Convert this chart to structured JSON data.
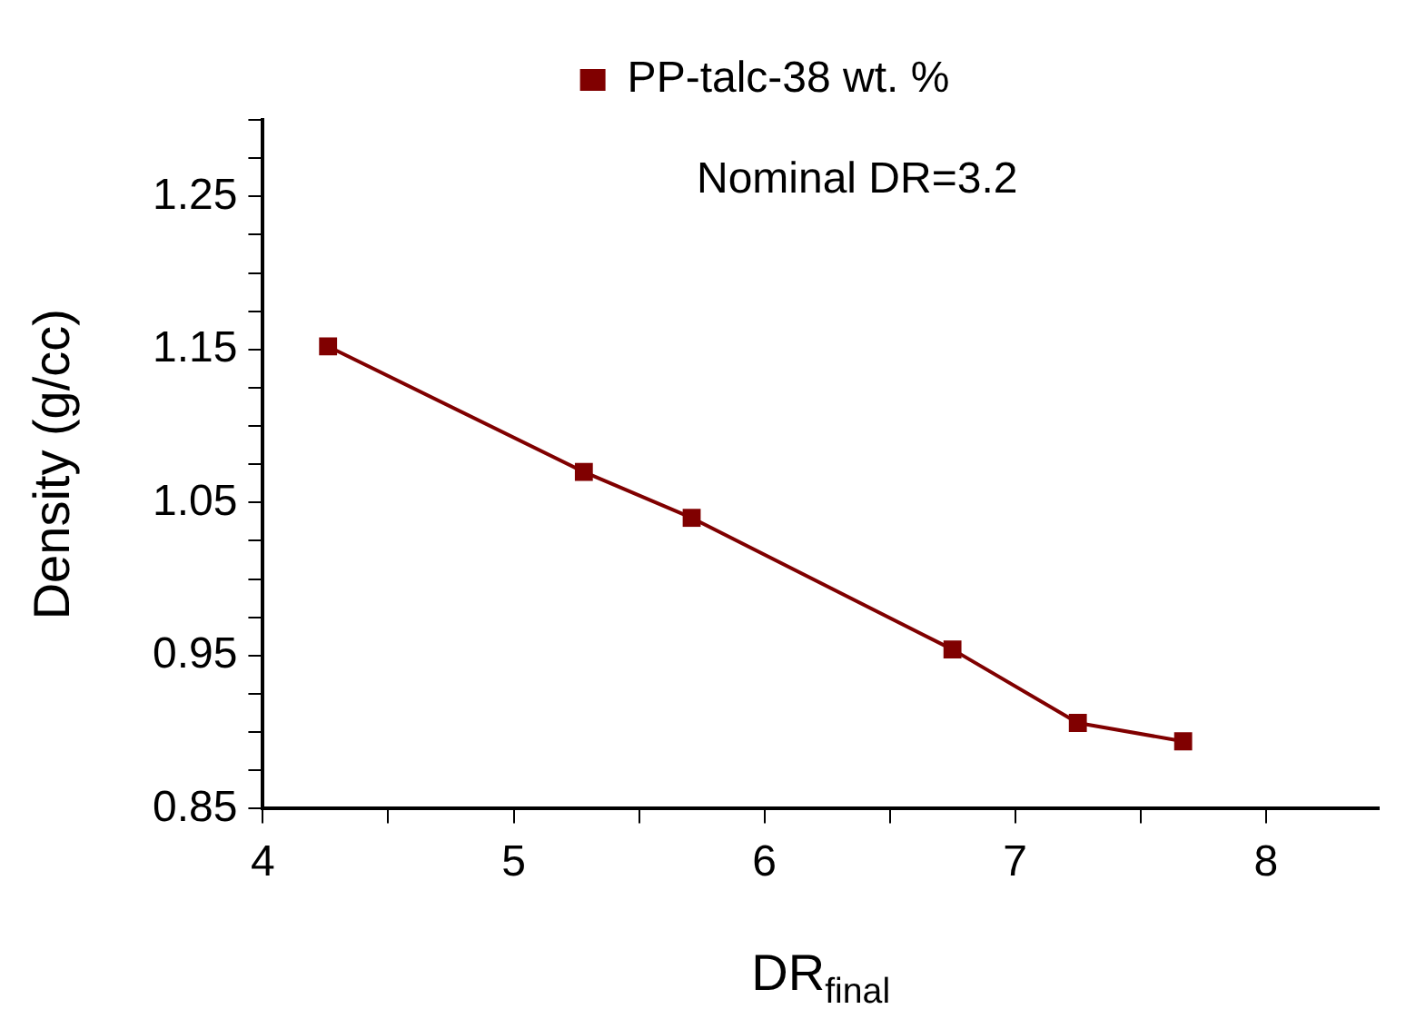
{
  "chart_data": {
    "type": "line",
    "xlabel": "DR$_{final}$",
    "ylabel": "Density (g/cc)",
    "annotations": [
      "Nominal DR=3.2"
    ],
    "series": [
      {
        "name": "PP-talc-38 wt. %",
        "color": "#800000",
        "x": [
          4.26,
          5.28,
          5.71,
          6.75,
          7.25,
          7.67
        ],
        "values": [
          1.152,
          1.07,
          1.04,
          0.954,
          0.906,
          0.894
        ]
      }
    ],
    "xlim": [
      4,
      8.45
    ],
    "xticks": [
      4,
      {
        "value": 4.5,
        "label": null
      },
      5,
      {
        "value": 5.5,
        "label": null
      },
      6,
      {
        "value": 6.5,
        "label": null
      },
      7,
      {
        "value": 7.5,
        "label": null
      },
      8
    ],
    "ylim": [
      0.85,
      1.3
    ],
    "yticks": [
      0.85,
      {
        "value": 0.875,
        "label": null
      },
      {
        "value": 0.9,
        "label": null
      },
      {
        "value": 0.925,
        "label": null
      },
      0.95,
      {
        "value": 0.975,
        "label": null
      },
      {
        "value": 1.0,
        "label": null
      },
      {
        "value": 1.025,
        "label": null
      },
      1.05,
      {
        "value": 1.075,
        "label": null
      },
      {
        "value": 1.1,
        "label": null
      },
      {
        "value": 1.125,
        "label": null
      },
      1.15,
      {
        "value": 1.175,
        "label": null
      },
      {
        "value": 1.2,
        "label": null
      },
      {
        "value": 1.225,
        "label": null
      },
      1.25,
      {
        "value": 1.275,
        "label": null
      },
      {
        "value": 1.3,
        "label": null
      }
    ],
    "grid": false,
    "legend": "top",
    "marker": "square",
    "line_style": "solid"
  }
}
